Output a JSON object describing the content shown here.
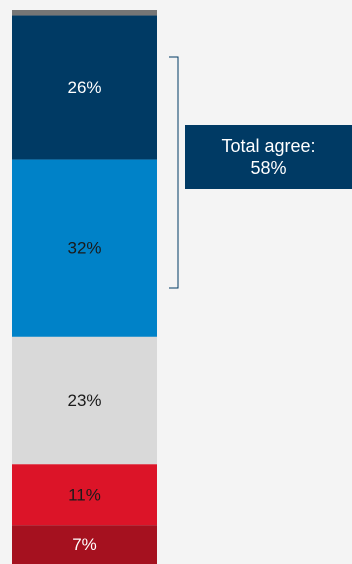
{
  "chart_data": {
    "type": "bar",
    "stacked": true,
    "orientation": "vertical",
    "categories": [
      ""
    ],
    "series": [
      {
        "values": [
          1
        ],
        "color": "#767676",
        "label": ""
      },
      {
        "values": [
          26
        ],
        "color": "#003a64",
        "label": "26%"
      },
      {
        "values": [
          32
        ],
        "color": "#0082c8",
        "label": "32%"
      },
      {
        "values": [
          23
        ],
        "color": "#d9d9d9",
        "label": "23%"
      },
      {
        "values": [
          11
        ],
        "color": "#dc1428",
        "label": "11%"
      },
      {
        "values": [
          7
        ],
        "color": "#a5111f",
        "label": "7%"
      }
    ],
    "callout": {
      "line1": "Total agree:",
      "line2": "58%",
      "color": "#003a64"
    },
    "axes_visible": false,
    "grid": false,
    "legend": "none"
  }
}
